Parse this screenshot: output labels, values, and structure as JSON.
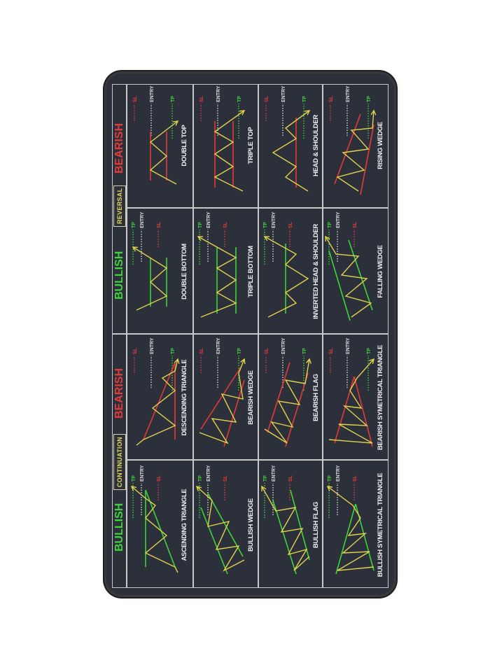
{
  "header": {
    "continuation": {
      "bullish": "BULLISH",
      "label": "CONTINUATION",
      "bearish": "BEARISH"
    },
    "reversal": {
      "bullish": "BULLISH",
      "label": "REVERSAL",
      "bearish": "BEARISH"
    }
  },
  "markers": {
    "tp": "TP",
    "entry": "ENTRY",
    "sl": "SL"
  },
  "colors": {
    "bullish": "#3fd43a",
    "bearish": "#e6393a",
    "price": "#e3d24c",
    "entry": "#d9d9d9",
    "mat": "#2b303b",
    "grid": "#c9c9c9"
  },
  "columns": [
    {
      "group": "continuation",
      "bias": "bullish",
      "patterns": [
        "ASCENDING TRIANGLE",
        "BULLISH WEDGE",
        "BULLISH FLAG",
        "BULLISH SYMETRICAL TRIANGLE"
      ]
    },
    {
      "group": "continuation",
      "bias": "bearish",
      "patterns": [
        "DESCENDING TRIANGLE",
        "BEARISH WEDGE",
        "BEARISH FLAG",
        "BEARISH SYMETRICAL TRIANGLE"
      ]
    },
    {
      "group": "reversal",
      "bias": "bullish",
      "patterns": [
        "DOUBLE BOTTOM",
        "TRIPLE BOTTOM",
        "INVERTED HEAD & SHOULDER",
        "FALLING WEDGE"
      ]
    },
    {
      "group": "reversal",
      "bias": "bearish",
      "patterns": [
        "DOUBLE TOP",
        "TRIPLE TOP",
        "HEAD & SHOULDER",
        "RISING WEDGE"
      ]
    }
  ]
}
